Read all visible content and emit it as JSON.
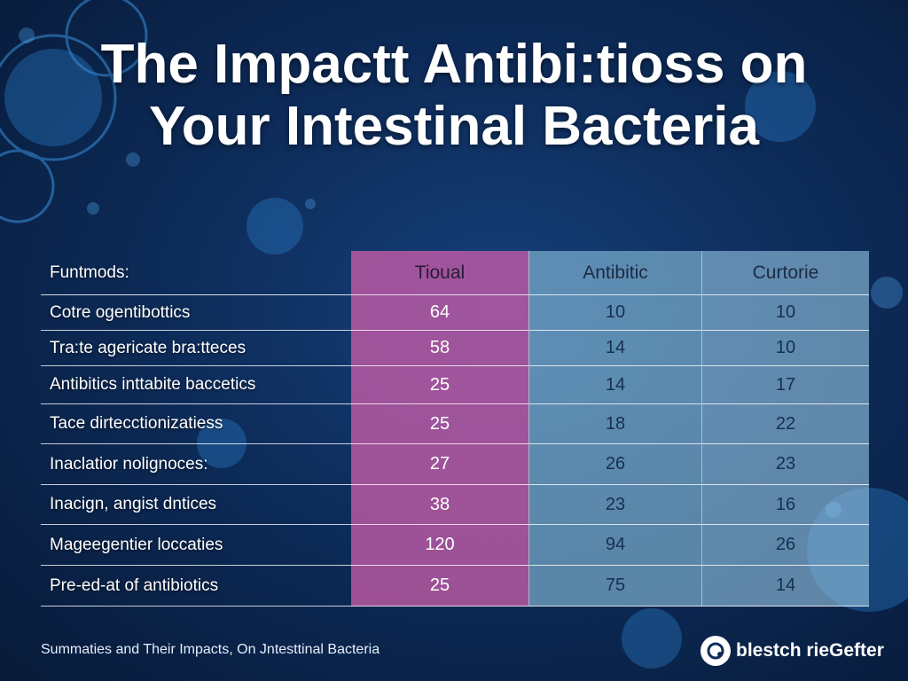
{
  "title": {
    "line1": "The Impactt Antibi:tioss on",
    "line2": "Your Intestinal Bacteria"
  },
  "chart_data": {
    "type": "table",
    "columns": [
      "Funtmods:",
      "Tioual",
      "Antibitic",
      "Curtorie"
    ],
    "rows": [
      {
        "label": "Cotre ogentibottics",
        "values": [
          "64",
          "10",
          "10"
        ]
      },
      {
        "label": "Tra:te agericate bra:tteces",
        "values": [
          "58",
          "14",
          "10"
        ]
      },
      {
        "label": "Antibitics inttabite baccetics",
        "values": [
          "25",
          "14",
          "17"
        ]
      },
      {
        "label": "Tace dirtecctionizatiess",
        "values": [
          "25",
          "18",
          "22"
        ]
      },
      {
        "label": "Inaclatior nolignoces:",
        "values": [
          "27",
          "26",
          "23"
        ]
      },
      {
        "label": "Inacign, angist dntices",
        "values": [
          "38",
          "23",
          "16"
        ]
      },
      {
        "label": "Mageegentier loccaties",
        "values": [
          "120",
          "94",
          "26"
        ]
      },
      {
        "label": "Pre-ed-at of antibiotics",
        "values": [
          "25",
          "75",
          "14"
        ]
      }
    ]
  },
  "footer": "Summaties and Their Impacts, On Jntesttinal Bacteria",
  "brand": {
    "name": "blestch rieGefter",
    "icon": "logo-icon"
  },
  "colors": {
    "background": "#0d2c5a",
    "column_1": "#c65ca8",
    "column_2": "#8bc0dc",
    "column_3": "#98c8e4"
  }
}
